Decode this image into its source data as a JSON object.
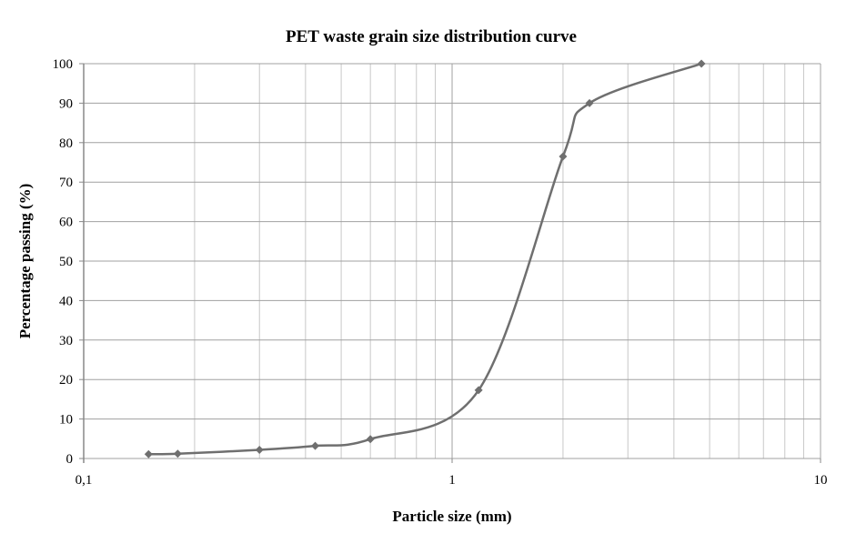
{
  "chart_data": {
    "type": "line",
    "title": "PET waste grain size distribution curve",
    "xlabel": "Particle size (mm)",
    "ylabel": "Percentage passing (%)",
    "x_scale": "log",
    "xlim": [
      0.1,
      10
    ],
    "ylim": [
      0,
      100
    ],
    "x_ticks": [
      "0,1",
      "1",
      "10"
    ],
    "y_ticks": [
      "0",
      "10",
      "20",
      "30",
      "40",
      "50",
      "60",
      "70",
      "80",
      "90",
      "100"
    ],
    "grid": true,
    "legend": "none",
    "marker": "diamond",
    "smooth": true,
    "series": [
      {
        "color": "#6f6f6f",
        "x": [
          0.15,
          0.18,
          0.3,
          0.425,
          0.6,
          1.18,
          2,
          2.36,
          4.75
        ],
        "y": [
          1.1,
          1.2,
          2.2,
          3.2,
          4.9,
          17.3,
          76.5,
          90,
          100
        ]
      }
    ]
  }
}
